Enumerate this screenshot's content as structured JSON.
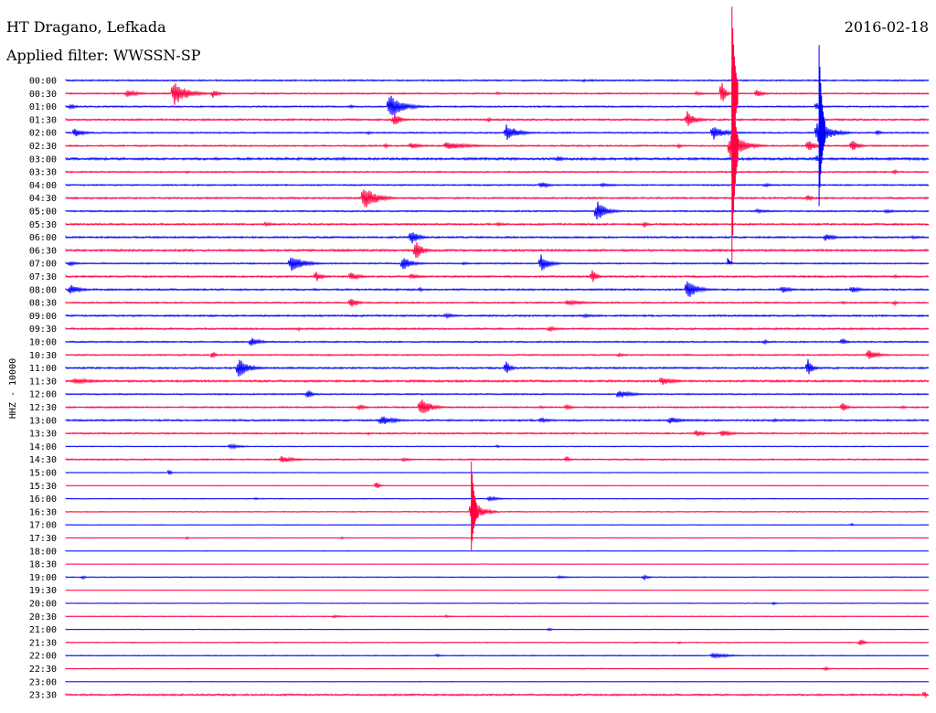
{
  "header": {
    "station": "HT Dragano, Lefkada",
    "date": "2016-02-18",
    "filter_label": "Applied filter: WWSSN-SP"
  },
  "colors": {
    "blue": "#0000ff",
    "red": "#ff0040",
    "text": "#000000"
  },
  "chart_data": {
    "type": "line",
    "title": "HT Dragano, Lefkada",
    "subtitle": "Applied filter: WWSSN-SP",
    "ylabel": "HHZ - 10000",
    "xlabel": "",
    "grid": false,
    "rows": [
      {
        "label": "00:00",
        "color": "blue",
        "noise": 0.5,
        "events": [
          [
            0.6,
            2,
            8
          ],
          [
            0.61,
            1.5,
            8
          ],
          [
            0.2,
            1.2,
            6
          ]
        ]
      },
      {
        "label": "00:30",
        "color": "red",
        "noise": 0.5,
        "events": [
          [
            0.07,
            4,
            40
          ],
          [
            0.125,
            14,
            40
          ],
          [
            0.17,
            5,
            20
          ],
          [
            0.76,
            17,
            10
          ],
          [
            0.8,
            5,
            20
          ],
          [
            0.73,
            2,
            30
          ],
          [
            0.5,
            1.5,
            15
          ]
        ]
      },
      {
        "label": "01:00",
        "color": "blue",
        "noise": 0.5,
        "events": [
          [
            0.005,
            3,
            20
          ],
          [
            0.375,
            14,
            40
          ],
          [
            0.33,
            2,
            10
          ],
          [
            0.87,
            6,
            10
          ]
        ]
      },
      {
        "label": "01:30",
        "color": "red",
        "noise": 0.6,
        "events": [
          [
            0.38,
            8,
            20
          ],
          [
            0.49,
            3,
            10
          ],
          [
            0.72,
            10,
            25
          ]
        ]
      },
      {
        "label": "02:00",
        "color": "blue",
        "noise": 0.5,
        "events": [
          [
            0.01,
            6,
            25
          ],
          [
            0.51,
            10,
            35
          ],
          [
            0.75,
            8,
            40
          ],
          [
            0.87,
            16,
            40
          ],
          [
            0.94,
            3,
            15
          ],
          [
            0.35,
            2,
            10
          ]
        ]
      },
      {
        "label": "02:30",
        "color": "red",
        "noise": 0.5,
        "events": [
          [
            0.4,
            4,
            30
          ],
          [
            0.37,
            3,
            10
          ],
          [
            0.44,
            4,
            80
          ],
          [
            0.71,
            3,
            10
          ],
          [
            0.77,
            16,
            40
          ],
          [
            0.86,
            7,
            25
          ],
          [
            0.91,
            8,
            20
          ]
        ]
      },
      {
        "label": "03:00",
        "color": "blue",
        "noise": 0.8,
        "events": [
          [
            0.32,
            2,
            40
          ],
          [
            0.57,
            4,
            15
          ],
          [
            0.66,
            2,
            20
          ],
          [
            0.87,
            5,
            10
          ]
        ]
      },
      {
        "label": "03:30",
        "color": "red",
        "noise": 0.5,
        "events": [
          [
            0.14,
            2,
            8
          ],
          [
            0.96,
            3,
            10
          ]
        ]
      },
      {
        "label": "04:00",
        "color": "blue",
        "noise": 0.5,
        "events": [
          [
            0.55,
            4,
            25
          ],
          [
            0.62,
            2,
            50
          ],
          [
            0.81,
            2,
            30
          ]
        ]
      },
      {
        "label": "04:30",
        "color": "red",
        "noise": 0.6,
        "events": [
          [
            0.345,
            14,
            40
          ],
          [
            0.86,
            4,
            12
          ]
        ]
      },
      {
        "label": "05:00",
        "color": "blue",
        "noise": 0.5,
        "events": [
          [
            0.615,
            12,
            30
          ],
          [
            0.8,
            2,
            60
          ],
          [
            0.95,
            2,
            40
          ]
        ]
      },
      {
        "label": "05:30",
        "color": "red",
        "noise": 0.6,
        "events": [
          [
            0.23,
            2,
            40
          ],
          [
            0.67,
            4,
            10
          ],
          [
            0.5,
            2,
            30
          ]
        ]
      },
      {
        "label": "06:00",
        "color": "blue",
        "noise": 0.6,
        "events": [
          [
            0.4,
            8,
            25
          ],
          [
            0.88,
            4,
            30
          ],
          [
            0.98,
            2,
            30
          ]
        ]
      },
      {
        "label": "06:30",
        "color": "red",
        "noise": 0.7,
        "events": [
          [
            0.405,
            12,
            20
          ]
        ]
      },
      {
        "label": "07:00",
        "color": "blue",
        "noise": 0.5,
        "events": [
          [
            0.005,
            3,
            20
          ],
          [
            0.26,
            10,
            40
          ],
          [
            0.39,
            8,
            30
          ],
          [
            0.55,
            11,
            25
          ],
          [
            0.46,
            2,
            20
          ]
        ]
      },
      {
        "label": "07:30",
        "color": "red",
        "noise": 0.6,
        "events": [
          [
            0.29,
            6,
            20
          ],
          [
            0.33,
            5,
            30
          ],
          [
            0.4,
            3,
            30
          ],
          [
            0.61,
            8,
            15
          ],
          [
            0.96,
            2,
            20
          ]
        ]
      },
      {
        "label": "08:00",
        "color": "blue",
        "noise": 0.6,
        "events": [
          [
            0.005,
            6,
            30
          ],
          [
            0.72,
            12,
            30
          ],
          [
            0.83,
            4,
            30
          ],
          [
            0.91,
            4,
            30
          ],
          [
            0.41,
            3,
            10
          ]
        ]
      },
      {
        "label": "08:30",
        "color": "red",
        "noise": 0.5,
        "events": [
          [
            0.33,
            6,
            20
          ],
          [
            0.58,
            3,
            60
          ],
          [
            0.9,
            2,
            15
          ],
          [
            0.96,
            3,
            10
          ]
        ]
      },
      {
        "label": "09:00",
        "color": "blue",
        "noise": 0.6,
        "events": [
          [
            0.44,
            3,
            30
          ],
          [
            0.6,
            2,
            40
          ]
        ]
      },
      {
        "label": "09:30",
        "color": "red",
        "noise": 0.6,
        "events": [
          [
            0.56,
            3,
            30
          ],
          [
            0.27,
            2,
            10
          ]
        ]
      },
      {
        "label": "10:00",
        "color": "blue",
        "noise": 0.5,
        "events": [
          [
            0.215,
            6,
            25
          ],
          [
            0.81,
            3,
            10
          ],
          [
            0.9,
            4,
            15
          ]
        ]
      },
      {
        "label": "10:30",
        "color": "red",
        "noise": 0.5,
        "events": [
          [
            0.17,
            5,
            10
          ],
          [
            0.64,
            2,
            30
          ],
          [
            0.93,
            6,
            30
          ]
        ]
      },
      {
        "label": "11:00",
        "color": "blue",
        "noise": 0.6,
        "events": [
          [
            0.2,
            12,
            30
          ],
          [
            0.51,
            8,
            15
          ],
          [
            0.86,
            10,
            15
          ]
        ]
      },
      {
        "label": "11:30",
        "color": "red",
        "noise": 0.7,
        "events": [
          [
            0.01,
            3,
            70
          ],
          [
            0.69,
            5,
            40
          ]
        ]
      },
      {
        "label": "12:00",
        "color": "blue",
        "noise": 0.5,
        "events": [
          [
            0.28,
            6,
            15
          ],
          [
            0.64,
            5,
            40
          ]
        ]
      },
      {
        "label": "12:30",
        "color": "red",
        "noise": 0.5,
        "events": [
          [
            0.34,
            3,
            20
          ],
          [
            0.41,
            12,
            30
          ],
          [
            0.55,
            2,
            10
          ],
          [
            0.58,
            3,
            20
          ],
          [
            0.9,
            5,
            15
          ],
          [
            0.97,
            2,
            10
          ]
        ]
      },
      {
        "label": "13:00",
        "color": "blue",
        "noise": 0.6,
        "events": [
          [
            0.365,
            6,
            40
          ],
          [
            0.55,
            3,
            30
          ],
          [
            0.7,
            4,
            40
          ],
          [
            0.82,
            2,
            20
          ]
        ]
      },
      {
        "label": "13:30",
        "color": "red",
        "noise": 0.5,
        "events": [
          [
            0.73,
            4,
            25
          ],
          [
            0.76,
            4,
            30
          ],
          [
            0.35,
            2,
            10
          ]
        ]
      },
      {
        "label": "14:00",
        "color": "blue",
        "noise": 0.3,
        "events": [
          [
            0.19,
            3,
            30
          ],
          [
            0.5,
            1.5,
            10
          ]
        ]
      },
      {
        "label": "14:30",
        "color": "red",
        "noise": 0.5,
        "events": [
          [
            0.25,
            4,
            40
          ],
          [
            0.39,
            2,
            30
          ],
          [
            0.58,
            4,
            10
          ]
        ]
      },
      {
        "label": "15:00",
        "color": "blue",
        "noise": 0.2,
        "events": [
          [
            0.12,
            4,
            6
          ]
        ]
      },
      {
        "label": "15:30",
        "color": "red",
        "noise": 0.2,
        "events": [
          [
            0.36,
            4,
            10
          ]
        ]
      },
      {
        "label": "16:00",
        "color": "blue",
        "noise": 0.3,
        "events": [
          [
            0.49,
            3,
            30
          ],
          [
            0.22,
            1.5,
            10
          ]
        ]
      },
      {
        "label": "16:30",
        "color": "red",
        "noise": 0.3,
        "events": [
          [
            0.47,
            16,
            30
          ]
        ]
      },
      {
        "label": "17:00",
        "color": "blue",
        "noise": 0.2,
        "events": [
          [
            0.91,
            2,
            8
          ]
        ]
      },
      {
        "label": "17:30",
        "color": "red",
        "noise": 0.2,
        "events": [
          [
            0.14,
            2,
            6
          ],
          [
            0.32,
            2,
            6
          ]
        ]
      },
      {
        "label": "18:00",
        "color": "blue",
        "noise": 0.15,
        "events": []
      },
      {
        "label": "18:30",
        "color": "red",
        "noise": 0.15,
        "events": []
      },
      {
        "label": "19:00",
        "color": "blue",
        "noise": 0.3,
        "events": [
          [
            0.02,
            2,
            8
          ],
          [
            0.57,
            1.5,
            40
          ],
          [
            0.67,
            3,
            15
          ]
        ]
      },
      {
        "label": "19:30",
        "color": "red",
        "noise": 0.15,
        "events": []
      },
      {
        "label": "20:00",
        "color": "blue",
        "noise": 0.2,
        "events": [
          [
            0.82,
            2,
            8
          ]
        ]
      },
      {
        "label": "20:30",
        "color": "red",
        "noise": 0.3,
        "events": [
          [
            0.31,
            1.5,
            30
          ],
          [
            0.44,
            1.5,
            20
          ]
        ]
      },
      {
        "label": "21:00",
        "color": "blue",
        "noise": 0.2,
        "events": [
          [
            0.56,
            2,
            8
          ]
        ]
      },
      {
        "label": "21:30",
        "color": "red",
        "noise": 0.3,
        "events": [
          [
            0.92,
            4,
            15
          ],
          [
            0.71,
            1.5,
            10
          ]
        ]
      },
      {
        "label": "22:00",
        "color": "blue",
        "noise": 0.3,
        "events": [
          [
            0.75,
            3,
            50
          ],
          [
            0.43,
            1.5,
            20
          ]
        ]
      },
      {
        "label": "22:30",
        "color": "red",
        "noise": 0.3,
        "events": [
          [
            0.88,
            2,
            15
          ]
        ]
      },
      {
        "label": "23:00",
        "color": "blue",
        "noise": 0.15,
        "events": []
      },
      {
        "label": "23:30",
        "color": "red",
        "noise": 0.6,
        "events": [
          [
            0.995,
            5,
            6
          ]
        ]
      }
    ],
    "big_events": [
      {
        "row": "00:30",
        "x": 0.772,
        "up": 95,
        "down": 90,
        "color": "red"
      },
      {
        "row": "02:30",
        "x": 0.772,
        "up": 86,
        "down": 130,
        "color": "red"
      },
      {
        "row": "02:00",
        "x": 0.873,
        "up": 96,
        "down": 80,
        "color": "blue"
      },
      {
        "row": "07:00",
        "x": 0.767,
        "up": 6,
        "down": 0,
        "color": "blue"
      },
      {
        "row": "16:30",
        "x": 0.47,
        "up": 55,
        "down": 42,
        "color": "red"
      }
    ]
  }
}
